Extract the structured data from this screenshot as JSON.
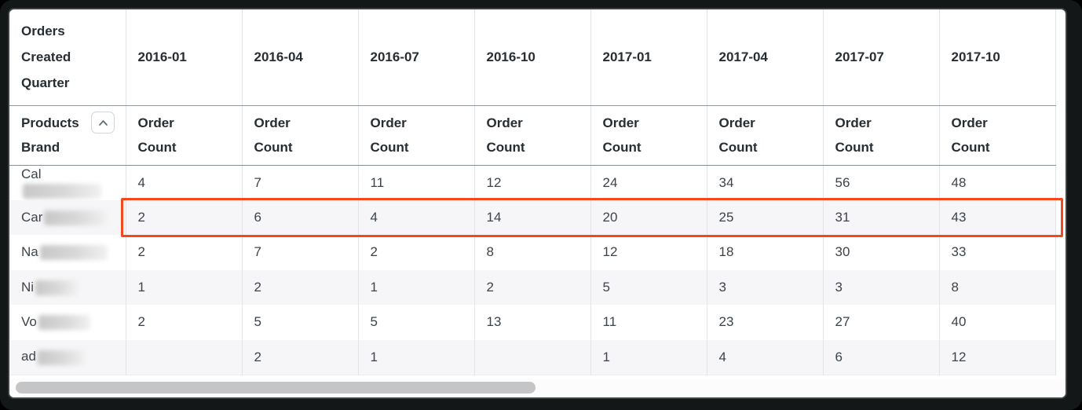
{
  "header": {
    "row_dimension_label": "Orders Created Quarter",
    "pivot_label": "Products Brand",
    "sort_icon": "chevron-up-icon",
    "columns": [
      "2016-01",
      "2016-04",
      "2016-07",
      "2016-10",
      "2017-01",
      "2017-04",
      "2017-07",
      "2017-10"
    ],
    "measure_label": "Order Count"
  },
  "table": {
    "rows": [
      {
        "label_prefix": "Cal",
        "label_redacted": true,
        "redaction_width": 100,
        "highlighted": false,
        "values": [
          "4",
          "7",
          "11",
          "12",
          "24",
          "34",
          "56",
          "48"
        ]
      },
      {
        "label_prefix": "Car",
        "label_redacted": true,
        "redaction_width": 80,
        "highlighted": true,
        "values": [
          "2",
          "6",
          "4",
          "14",
          "20",
          "25",
          "31",
          "43"
        ]
      },
      {
        "label_prefix": "Na",
        "label_redacted": true,
        "redaction_width": 86,
        "highlighted": false,
        "values": [
          "2",
          "7",
          "2",
          "8",
          "12",
          "18",
          "30",
          "33"
        ]
      },
      {
        "label_prefix": "Ni",
        "label_redacted": true,
        "redaction_width": 54,
        "highlighted": false,
        "values": [
          "1",
          "2",
          "1",
          "2",
          "5",
          "3",
          "3",
          "8"
        ]
      },
      {
        "label_prefix": "Vo",
        "label_redacted": true,
        "redaction_width": 66,
        "highlighted": false,
        "values": [
          "2",
          "5",
          "5",
          "13",
          "11",
          "23",
          "27",
          "40"
        ]
      },
      {
        "label_prefix": "ad",
        "label_redacted": true,
        "redaction_width": 60,
        "highlighted": false,
        "values": [
          "",
          "2",
          "1",
          "",
          "1",
          "4",
          "6",
          "12"
        ]
      }
    ]
  },
  "annotation": {
    "type": "row-highlight-box",
    "highlighted_row_prefix": "Car",
    "color": "#f4491c"
  },
  "scrollbar": {
    "orientation": "horizontal",
    "position": "left"
  },
  "colors": {
    "highlight_box": "#f4491c",
    "header_text": "#262d33",
    "body_text": "#3c434a",
    "alt_row_background": "#f6f6f8",
    "grid_line": "#e3e4e6",
    "header_separator": "#8b9298",
    "scrollbar_thumb": "#c4c5c7",
    "frame": "#131718"
  }
}
